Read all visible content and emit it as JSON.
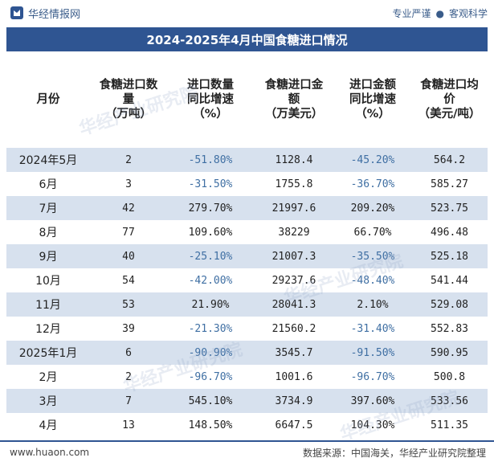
{
  "header": {
    "brand": "华经情报网",
    "slogan_left": "专业严谨",
    "slogan_sep": "●",
    "slogan_right": "客观科学"
  },
  "title": "2024-2025年4月中国食糖进口情况",
  "table": {
    "columns": [
      "月份",
      "食糖进口数量（万吨）",
      "进口数量同比增速（%）",
      "食糖进口金额（万美元）",
      "进口金额同比增速（%）",
      "食糖进口均价（美元/吨）"
    ],
    "column_lines": [
      [
        "月份"
      ],
      [
        "食糖进口数",
        "量",
        "（万吨）"
      ],
      [
        "进口数量",
        "同比增速",
        "（%）"
      ],
      [
        "食糖进口金",
        "额",
        "（万美元）"
      ],
      [
        "进口金额",
        "同比增速",
        "（%）"
      ],
      [
        "食糖进口均",
        "价",
        "（美元/吨）"
      ]
    ],
    "rows": [
      [
        "2024年5月",
        "2",
        "-51.80%",
        "1128.4",
        "-45.20%",
        "564.2"
      ],
      [
        "6月",
        "3",
        "-31.50%",
        "1755.8",
        "-36.70%",
        "585.27"
      ],
      [
        "7月",
        "42",
        "279.70%",
        "21997.6",
        "209.20%",
        "523.75"
      ],
      [
        "8月",
        "77",
        "109.60%",
        "38229",
        "66.70%",
        "496.48"
      ],
      [
        "9月",
        "40",
        "-25.10%",
        "21007.3",
        "-35.50%",
        "525.18"
      ],
      [
        "10月",
        "54",
        "-42.00%",
        "29237.6",
        "-48.40%",
        "541.44"
      ],
      [
        "11月",
        "53",
        "21.90%",
        "28041.3",
        "2.10%",
        "529.08"
      ],
      [
        "12月",
        "39",
        "-21.30%",
        "21560.2",
        "-31.40%",
        "552.83"
      ],
      [
        "2025年1月",
        "6",
        "-90.90%",
        "3545.7",
        "-91.50%",
        "590.95"
      ],
      [
        "2月",
        "2",
        "-96.70%",
        "1001.6",
        "-96.70%",
        "500.8"
      ],
      [
        "3月",
        "7",
        "545.10%",
        "3734.9",
        "397.60%",
        "533.56"
      ],
      [
        "4月",
        "13",
        "148.50%",
        "6647.5",
        "104.30%",
        "511.35"
      ]
    ]
  },
  "footer": {
    "website": "www.huaon.com",
    "source": "数据来源：中国海关，华经产业研究院整理"
  },
  "watermark": "华经产业研究院",
  "colors": {
    "brand_blue": "#2f5592",
    "stripe": "#d7e1ee",
    "negative_text": "#3f6fa3"
  }
}
